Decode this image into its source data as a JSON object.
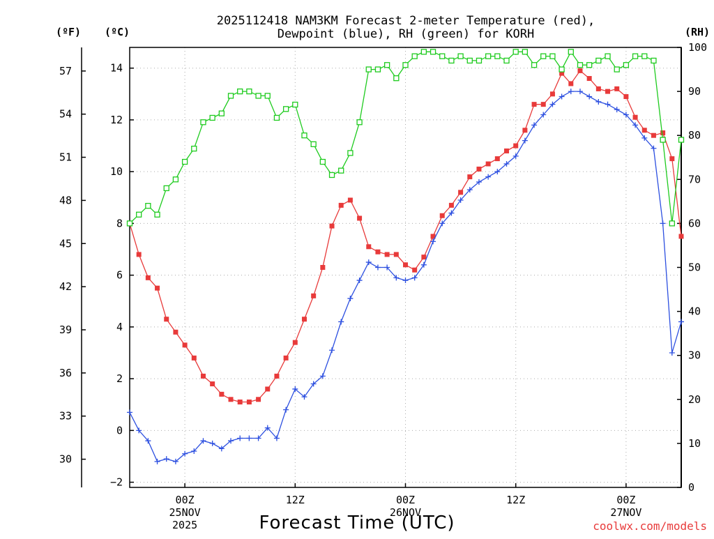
{
  "chart_data": {
    "type": "line",
    "title_line1": "2025112418 NAM3KM Forecast 2-meter Temperature (red),",
    "title_line2": "Dewpoint (blue), RH (green) for KORH",
    "xlabel": "Forecast Time (UTC)",
    "credit": "coolwx.com/models",
    "units": {
      "fahrenheit": "(ºF)",
      "celsius": "(ºC)",
      "rh": "(RH)"
    },
    "x_range": [
      0,
      60
    ],
    "celsius_range": [
      -2.2,
      14.8
    ],
    "rh_range": [
      0,
      100
    ],
    "celsius_ticks": [
      {
        "value": -2,
        "label": "−2"
      },
      {
        "value": 0,
        "label": "0"
      },
      {
        "value": 2,
        "label": "2"
      },
      {
        "value": 4,
        "label": "4"
      },
      {
        "value": 6,
        "label": "6"
      },
      {
        "value": 8,
        "label": "8"
      },
      {
        "value": 10,
        "label": "10"
      },
      {
        "value": 12,
        "label": "12"
      },
      {
        "value": 14,
        "label": "14"
      }
    ],
    "fahrenheit_ticks": [
      "30",
      "33",
      "36",
      "39",
      "42",
      "45",
      "48",
      "51",
      "54",
      "57"
    ],
    "rh_ticks": [
      "0",
      "10",
      "20",
      "30",
      "40",
      "50",
      "60",
      "70",
      "80",
      "90",
      "100"
    ],
    "x_ticks": [
      {
        "hour": 6,
        "lines": [
          "00Z",
          "25NOV",
          "2025"
        ]
      },
      {
        "hour": 18,
        "lines": [
          "12Z"
        ]
      },
      {
        "hour": 30,
        "lines": [
          "00Z",
          "26NOV"
        ]
      },
      {
        "hour": 42,
        "lines": [
          "12Z"
        ]
      },
      {
        "hour": 54,
        "lines": [
          "00Z",
          "27NOV"
        ]
      }
    ],
    "series": [
      {
        "name": "Temperature",
        "color": "#e83a3a",
        "axis": "celsius",
        "marker": "filled-square",
        "values": [
          8.0,
          6.8,
          5.9,
          5.5,
          4.3,
          3.8,
          3.3,
          2.8,
          2.1,
          1.8,
          1.4,
          1.2,
          1.1,
          1.1,
          1.2,
          1.6,
          2.1,
          2.8,
          3.4,
          4.3,
          5.2,
          6.3,
          7.9,
          8.7,
          8.9,
          8.2,
          7.1,
          6.9,
          6.8,
          6.8,
          6.4,
          6.2,
          6.7,
          7.5,
          8.3,
          8.7,
          9.2,
          9.8,
          10.1,
          10.3,
          10.5,
          10.8,
          11.0,
          11.6,
          12.6,
          12.6,
          13.0,
          13.8,
          13.4,
          13.9,
          13.6,
          13.2,
          13.1,
          13.2,
          12.9,
          12.1,
          11.6,
          11.4,
          11.5,
          10.5,
          7.5
        ]
      },
      {
        "name": "Dewpoint",
        "color": "#2c4fe0",
        "axis": "celsius",
        "marker": "plus",
        "values": [
          0.7,
          0.0,
          -0.4,
          -1.2,
          -1.1,
          -1.2,
          -0.9,
          -0.8,
          -0.4,
          -0.5,
          -0.7,
          -0.4,
          -0.3,
          -0.3,
          -0.3,
          0.1,
          -0.3,
          0.8,
          1.6,
          1.3,
          1.8,
          2.1,
          3.1,
          4.2,
          5.1,
          5.8,
          6.5,
          6.3,
          6.3,
          5.9,
          5.8,
          5.9,
          6.4,
          7.3,
          8.0,
          8.4,
          8.9,
          9.3,
          9.6,
          9.8,
          10.0,
          10.3,
          10.6,
          11.2,
          11.8,
          12.2,
          12.6,
          12.9,
          13.1,
          13.1,
          12.9,
          12.7,
          12.6,
          12.4,
          12.2,
          11.8,
          11.3,
          10.9,
          8.0,
          3.0,
          4.2
        ]
      },
      {
        "name": "RH",
        "color": "#1ecb1e",
        "axis": "rh",
        "marker": "open-square",
        "values": [
          60,
          62,
          64,
          62,
          68,
          70,
          74,
          77,
          83,
          84,
          85,
          89,
          90,
          90,
          89,
          89,
          84,
          86,
          87,
          80,
          78,
          74,
          71,
          72,
          76,
          83,
          95,
          95,
          96,
          93,
          96,
          98,
          99,
          99,
          98,
          97,
          98,
          97,
          97,
          98,
          98,
          97,
          99,
          99,
          96,
          98,
          98,
          95,
          99,
          96,
          96,
          97,
          98,
          95,
          96,
          98,
          98,
          97,
          79,
          60,
          79
        ]
      }
    ]
  }
}
